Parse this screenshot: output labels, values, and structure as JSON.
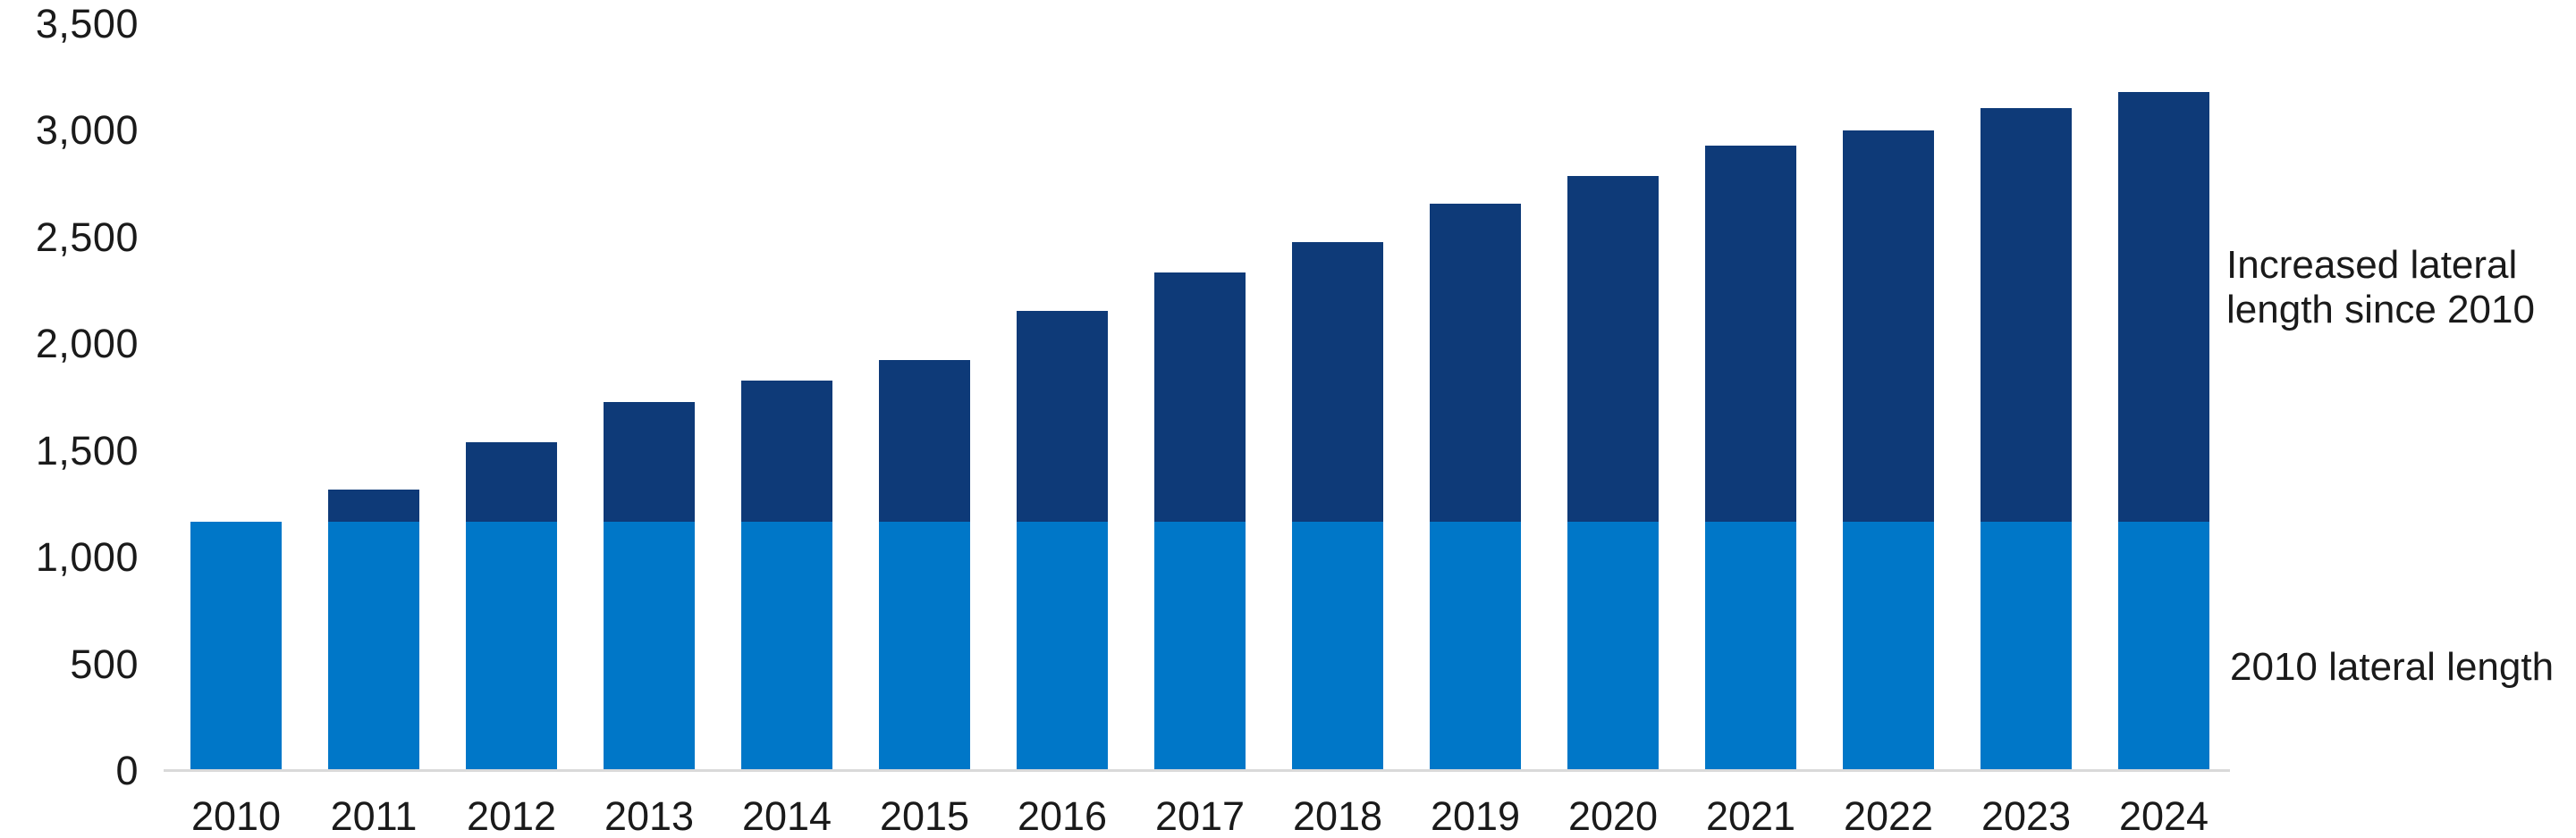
{
  "chart_data": {
    "type": "bar",
    "stacked": true,
    "title": "",
    "xlabel": "",
    "ylabel": "",
    "grid": false,
    "legend_position": "right-side annotations",
    "ylim": [
      0,
      3500
    ],
    "categories": [
      "2010",
      "2011",
      "2012",
      "2013",
      "2014",
      "2015",
      "2016",
      "2017",
      "2018",
      "2019",
      "2020",
      "2021",
      "2022",
      "2023",
      "2024"
    ],
    "series": [
      {
        "name": "2010 lateral length",
        "color": "#0077C8",
        "values": [
          1170,
          1170,
          1170,
          1170,
          1170,
          1170,
          1170,
          1170,
          1170,
          1170,
          1170,
          1170,
          1170,
          1170,
          1170
        ]
      },
      {
        "name": "Increased lateral length since 2010",
        "color": "#0E3A78",
        "values": [
          0,
          150,
          370,
          560,
          660,
          755,
          985,
          1165,
          1310,
          1490,
          1620,
          1760,
          1830,
          1935,
          2010
        ]
      }
    ],
    "totals": [
      1170,
      1320,
      1540,
      1730,
      1830,
      1925,
      2155,
      2335,
      2480,
      2660,
      2790,
      2930,
      3000,
      3105,
      3180
    ],
    "yticks": [
      {
        "label": "0",
        "value": 0
      },
      {
        "label": "500",
        "value": 500
      },
      {
        "label": "1,000",
        "value": 1000
      },
      {
        "label": "1,500",
        "value": 1500
      },
      {
        "label": "2,000",
        "value": 2000
      },
      {
        "label": "2,500",
        "value": 2500
      },
      {
        "label": "3,000",
        "value": 3000
      },
      {
        "label": "3,500",
        "value": 3500
      }
    ]
  },
  "annotations": {
    "increased": {
      "line1": "Increased lateral",
      "line2": "length since 2010"
    },
    "base": "2010 lateral length"
  },
  "colors": {
    "light_blue": "#0077C8",
    "dark_blue": "#0E3A78",
    "axis_line": "#D9D9D9",
    "text": "#1A1A1A",
    "background": "#FFFFFF"
  }
}
